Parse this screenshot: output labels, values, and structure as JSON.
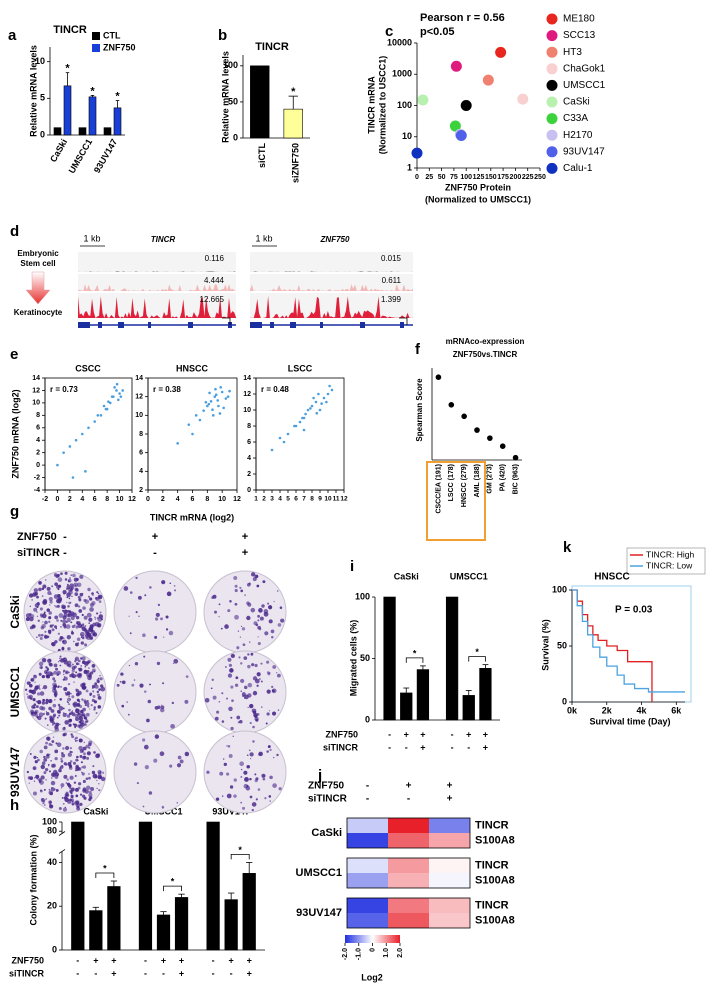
{
  "panel_labels": [
    "a",
    "b",
    "c",
    "d",
    "e",
    "f",
    "g",
    "h",
    "i",
    "j",
    "k"
  ],
  "chart_data": [
    {
      "type": "bar",
      "title": "TINCR",
      "ylabel": [
        "Relative mRNA levels"
      ],
      "categories": [
        "CaSki",
        "UMSCC1",
        "93UV147"
      ],
      "series": [
        {
          "name": "CTL",
          "color": "#000000",
          "values": [
            1,
            1,
            1
          ]
        },
        {
          "name": "ZNF750",
          "color": "#1a3fd6",
          "values": [
            6.7,
            5.2,
            3.7
          ],
          "errors": [
            1.8,
            0.2,
            1.0
          ]
        }
      ],
      "annotations": [
        "*",
        "*",
        "*"
      ],
      "ylim": [
        0,
        12
      ],
      "yticks": [
        0,
        5,
        10
      ]
    },
    {
      "type": "bar",
      "title": "TINCR",
      "ylabel": [
        "Relative mRNA levels"
      ],
      "categories": [
        "siCTL",
        "siZNF750"
      ],
      "values": [
        100,
        40
      ],
      "errors": [
        null,
        18
      ],
      "colors": [
        "#000000",
        "#ffff99"
      ],
      "annotations": [
        null,
        "*"
      ],
      "ylim": [
        0,
        115
      ],
      "yticks": [
        0,
        50,
        100
      ]
    },
    {
      "type": "scatter",
      "annotations": [
        "Pearson r = 0.56",
        "p<0.05"
      ],
      "xlabel": [
        "ZNF750 Protein",
        "(Normalized to UMSCC1)"
      ],
      "ylabel": [
        "TINCR mRNA",
        "(Normalized to USCC1)"
      ],
      "log_y": true,
      "xlim": [
        0,
        250
      ],
      "xticks": [
        0,
        25,
        50,
        75,
        100,
        125,
        150,
        175,
        200,
        225,
        250
      ],
      "ylim": [
        1,
        10000
      ],
      "yticks": [
        1,
        10,
        100,
        1000,
        10000
      ],
      "series": [
        {
          "name": "ME180",
          "color": "#e8251f",
          "x": [
            170
          ],
          "values": [
            5000
          ]
        },
        {
          "name": "SCC13",
          "color": "#e0197f",
          "x": [
            80
          ],
          "values": [
            1800
          ]
        },
        {
          "name": "HT3",
          "color": "#f08070",
          "x": [
            145
          ],
          "values": [
            650
          ]
        },
        {
          "name": "ChaGok1",
          "color": "#f8d0d0",
          "x": [
            215
          ],
          "values": [
            160
          ]
        },
        {
          "name": "UMSCC1",
          "color": "#000000",
          "x": [
            100
          ],
          "values": [
            100
          ]
        },
        {
          "name": "CaSki",
          "color": "#b8f0b0",
          "x": [
            12
          ],
          "values": [
            150
          ]
        },
        {
          "name": "C33A",
          "color": "#3cd23c",
          "x": [
            78
          ],
          "values": [
            22
          ]
        },
        {
          "name": "H2170",
          "color": "#c8c0f0",
          "x": [
            88
          ],
          "values": [
            12
          ]
        },
        {
          "name": "93UV147",
          "color": "#5060e8",
          "x": [
            90
          ],
          "values": [
            11
          ]
        },
        {
          "name": "Calu-1",
          "color": "#1030c0",
          "x": [
            0
          ],
          "values": [
            3
          ]
        }
      ]
    },
    {
      "type": "scatter",
      "title": "CSCC",
      "annotations": [
        "r = 0.73"
      ],
      "ylabel": [
        "ZNF750 mRNA (log2)"
      ],
      "color": "#4a9fe0",
      "xlim": [
        -2,
        12
      ],
      "xticks": [
        -2,
        0,
        2,
        4,
        6,
        8,
        10,
        12
      ],
      "ylim": [
        -4,
        14
      ],
      "yticks": [
        -4,
        -2,
        0,
        2,
        4,
        6,
        8,
        10,
        12,
        14
      ],
      "x": [
        8.5,
        9,
        9.5,
        10,
        8,
        7,
        10.5,
        9.8,
        8.8,
        7.5,
        6,
        5,
        4,
        3,
        2,
        1,
        0,
        9.2,
        10.2,
        8.2,
        6.5,
        7.8,
        4.5,
        2.5,
        9.6
      ],
      "values": [
        10,
        11,
        12,
        11.5,
        9,
        8,
        12,
        10.5,
        11,
        9.5,
        7,
        6,
        5,
        4,
        3,
        2,
        0,
        12.5,
        11,
        10.2,
        8,
        9,
        -1,
        -2,
        13
      ]
    },
    {
      "type": "scatter",
      "title": "HNSCC",
      "annotations": [
        "r = 0.38"
      ],
      "xlabel": [
        "TINCR mRNA (log2)"
      ],
      "color": "#4a9fe0",
      "xlim": [
        0,
        12
      ],
      "xticks": [
        0,
        2,
        4,
        6,
        8,
        10,
        12
      ],
      "ylim": [
        2,
        14
      ],
      "yticks": [
        2,
        4,
        6,
        8,
        10,
        12,
        14
      ],
      "x": [
        8,
        8.5,
        9,
        9.5,
        10,
        7.5,
        8.8,
        9.2,
        10.5,
        7,
        6.5,
        9.8,
        8.2,
        10.2,
        5.5,
        9.1,
        8.7,
        7.8,
        10.8,
        6,
        4,
        9.4,
        8.3,
        9.7,
        11
      ],
      "values": [
        11,
        11.5,
        12,
        11,
        12.5,
        10.5,
        10,
        12.2,
        11.8,
        9.5,
        10,
        13,
        11.2,
        10.8,
        9,
        12.8,
        10.6,
        11.4,
        12,
        8,
        7,
        11.6,
        12.4,
        10.2,
        12.6
      ]
    },
    {
      "type": "scatter",
      "title": "LSCC",
      "annotations": [
        "r = 0.48"
      ],
      "color": "#4a9fe0",
      "xlim": [
        1,
        12
      ],
      "xticks": [
        1,
        2,
        3,
        4,
        5,
        6,
        7,
        8,
        9,
        10,
        11,
        12
      ],
      "ylim": [
        0,
        14
      ],
      "yticks": [
        0,
        2,
        4,
        6,
        8,
        10,
        12,
        14
      ],
      "x": [
        6,
        7,
        7.5,
        8,
        8.5,
        9,
        9.5,
        10,
        6.5,
        5,
        4.5,
        7.2,
        8.2,
        9.2,
        10.5,
        5.8,
        3,
        6.8,
        8.8,
        9.8,
        7.8,
        4,
        10.2,
        8.6,
        7
      ],
      "values": [
        8,
        9,
        10,
        10.5,
        11,
        10,
        11.5,
        12,
        8.5,
        7,
        6,
        9.5,
        11.5,
        10.8,
        12.5,
        8,
        5,
        9,
        12,
        11,
        10.2,
        6.5,
        13,
        9.6,
        7.5
      ]
    },
    {
      "type": "dot",
      "title": [
        "mRNAco-expression",
        "ZNF750vs.TINCR"
      ],
      "ylabel": [
        "Spearman Score"
      ],
      "color": "#000000",
      "categories": [
        "CSCC/EA (191)",
        "LSCC (178)",
        "HNSCC (279)",
        "AML (188)",
        "GM (273)",
        "PA (420)",
        "BIC (963)"
      ],
      "values": [
        0.72,
        0.48,
        0.38,
        0.26,
        0.19,
        0.12,
        0.02
      ],
      "ylim": [
        0,
        0.8
      ]
    },
    {
      "type": "bar",
      "ylabel": [
        "Migrated cells (%)"
      ],
      "categories": [
        "CaSki",
        "UMSCC1"
      ],
      "series": [
        {
          "color": "#000000",
          "values": [
            100,
            100
          ]
        },
        {
          "color": "#000000",
          "values": [
            22,
            20
          ],
          "errors": [
            4,
            4
          ]
        },
        {
          "color": "#000000",
          "values": [
            41,
            42
          ],
          "errors": [
            3,
            3
          ]
        }
      ],
      "conditions": [
        {
          "name": "ZNF750",
          "marks": [
            "-",
            "+",
            "+"
          ]
        },
        {
          "name": "siTINCR",
          "marks": [
            "-",
            "-",
            "+"
          ]
        }
      ],
      "annotations": [
        "*",
        "*"
      ],
      "bracket": true,
      "ylim": [
        0,
        100
      ],
      "yticks": [
        0,
        50,
        100
      ]
    },
    {
      "type": "line",
      "title": "HNSCC",
      "annotations": [
        "P = 0.03"
      ],
      "xlabel": [
        "Survival time (Day)"
      ],
      "ylabel": [
        "Survival (%)"
      ],
      "xlim": [
        0,
        6500
      ],
      "xticks": [
        {
          "value": 0,
          "label": "0k"
        },
        {
          "value": 2000,
          "label": "2k"
        },
        {
          "value": 4000,
          "label": "4k"
        },
        {
          "value": 6000,
          "label": "6k"
        }
      ],
      "ylim": [
        0,
        100
      ],
      "yticks": [
        0,
        50,
        100
      ],
      "series": [
        {
          "name": "TINCR: High",
          "color": "#e02020",
          "x": [
            0,
            300,
            300,
            600,
            600,
            900,
            900,
            1200,
            1200,
            1500,
            1500,
            2000,
            2000,
            2600,
            2600,
            3200,
            3200,
            4600,
            4600
          ],
          "values": [
            100,
            100,
            90,
            90,
            78,
            78,
            68,
            68,
            60,
            60,
            55,
            55,
            50,
            50,
            46,
            46,
            36,
            36,
            0
          ]
        },
        {
          "name": "TINCR: Low",
          "color": "#4ba3e0",
          "x": [
            0,
            300,
            300,
            600,
            600,
            900,
            900,
            1200,
            1200,
            1600,
            1600,
            2000,
            2000,
            2600,
            2600,
            3000,
            3000,
            3600,
            3600,
            4400,
            4400,
            6500
          ],
          "values": [
            100,
            100,
            86,
            86,
            72,
            72,
            60,
            60,
            49,
            49,
            40,
            40,
            32,
            32,
            24,
            24,
            16,
            16,
            12,
            12,
            9,
            9
          ]
        }
      ]
    },
    {
      "type": "bar",
      "ylabel": [
        "Colony formation (%)"
      ],
      "categories": [
        "CaSki",
        "UMSCC1",
        "93UV147"
      ],
      "series": [
        {
          "color": "#000000",
          "values": [
            100,
            100,
            100
          ]
        },
        {
          "color": "#000000",
          "values": [
            18,
            16,
            23
          ],
          "errors": [
            1.5,
            1.5,
            3
          ]
        },
        {
          "color": "#000000",
          "values": [
            29,
            24,
            35
          ],
          "errors": [
            2.5,
            1.5,
            5
          ]
        }
      ],
      "conditions": [
        {
          "name": "ZNF750",
          "marks": [
            "-",
            "+",
            "+"
          ]
        },
        {
          "name": "siTINCR",
          "marks": [
            "-",
            "-",
            "+"
          ]
        }
      ],
      "annotations": [
        "*",
        "*",
        "*"
      ],
      "bracket": true,
      "ylim": [
        0,
        100
      ],
      "ybreak": [
        45,
        75
      ],
      "yticks": [
        0,
        20,
        40,
        80,
        100
      ]
    },
    {
      "type": "heatmap",
      "conditions": [
        {
          "name": "ZNF750",
          "marks": [
            "-",
            "+",
            "+"
          ]
        },
        {
          "name": "siTINCR",
          "marks": [
            "-",
            "-",
            "+"
          ]
        }
      ],
      "rows": [
        {
          "group": "CaSki",
          "genes": [
            "TINCR",
            "S100A8"
          ],
          "values": [
            [
              -0.5,
              2.0,
              -1.2
            ],
            [
              -1.8,
              1.4,
              0.8
            ]
          ]
        },
        {
          "group": "UMSCC1",
          "genes": [
            "TINCR",
            "S100A8"
          ],
          "values": [
            [
              -0.3,
              0.9,
              0.1
            ],
            [
              -0.9,
              0.7,
              -0.1
            ]
          ]
        },
        {
          "group": "93UV147",
          "genes": [
            "TINCR",
            "S100A8"
          ],
          "values": [
            [
              -1.8,
              1.2,
              0.6
            ],
            [
              -1.5,
              1.5,
              0.5
            ]
          ]
        }
      ],
      "colorbar": {
        "label": "Log2",
        "lim": [
          -2,
          2
        ],
        "colors": [
          "#1f2fe0",
          "#ffffff",
          "#e8202a"
        ],
        "ticks": [
          {
            "value": -2,
            "label": "-2.0"
          },
          {
            "value": -1,
            "label": "-1.0"
          },
          0,
          {
            "value": 1,
            "label": "1.0"
          },
          {
            "value": 2,
            "label": "2.0"
          }
        ]
      }
    }
  ],
  "genome_tracks": {
    "scale_label": "1 kb",
    "row_labels": [
      [
        "Embryonic",
        "Stem cell"
      ],
      [
        "Keratinocyte"
      ]
    ],
    "loci": [
      {
        "gene": "TINCR",
        "track_values": [
          0.116,
          4.444,
          12.665
        ]
      },
      {
        "gene": "ZNF750",
        "track_values": [
          0.015,
          0.611,
          1.399
        ]
      }
    ]
  },
  "colony_assay": {
    "conditions": [
      {
        "name": "ZNF750",
        "marks": [
          "-",
          "+",
          "+"
        ]
      },
      {
        "name": "siTINCR",
        "marks": [
          "-",
          "-",
          "+"
        ]
      }
    ],
    "cell_lines": [
      "CaSki",
      "UMSCC1",
      "93UV147"
    ]
  }
}
